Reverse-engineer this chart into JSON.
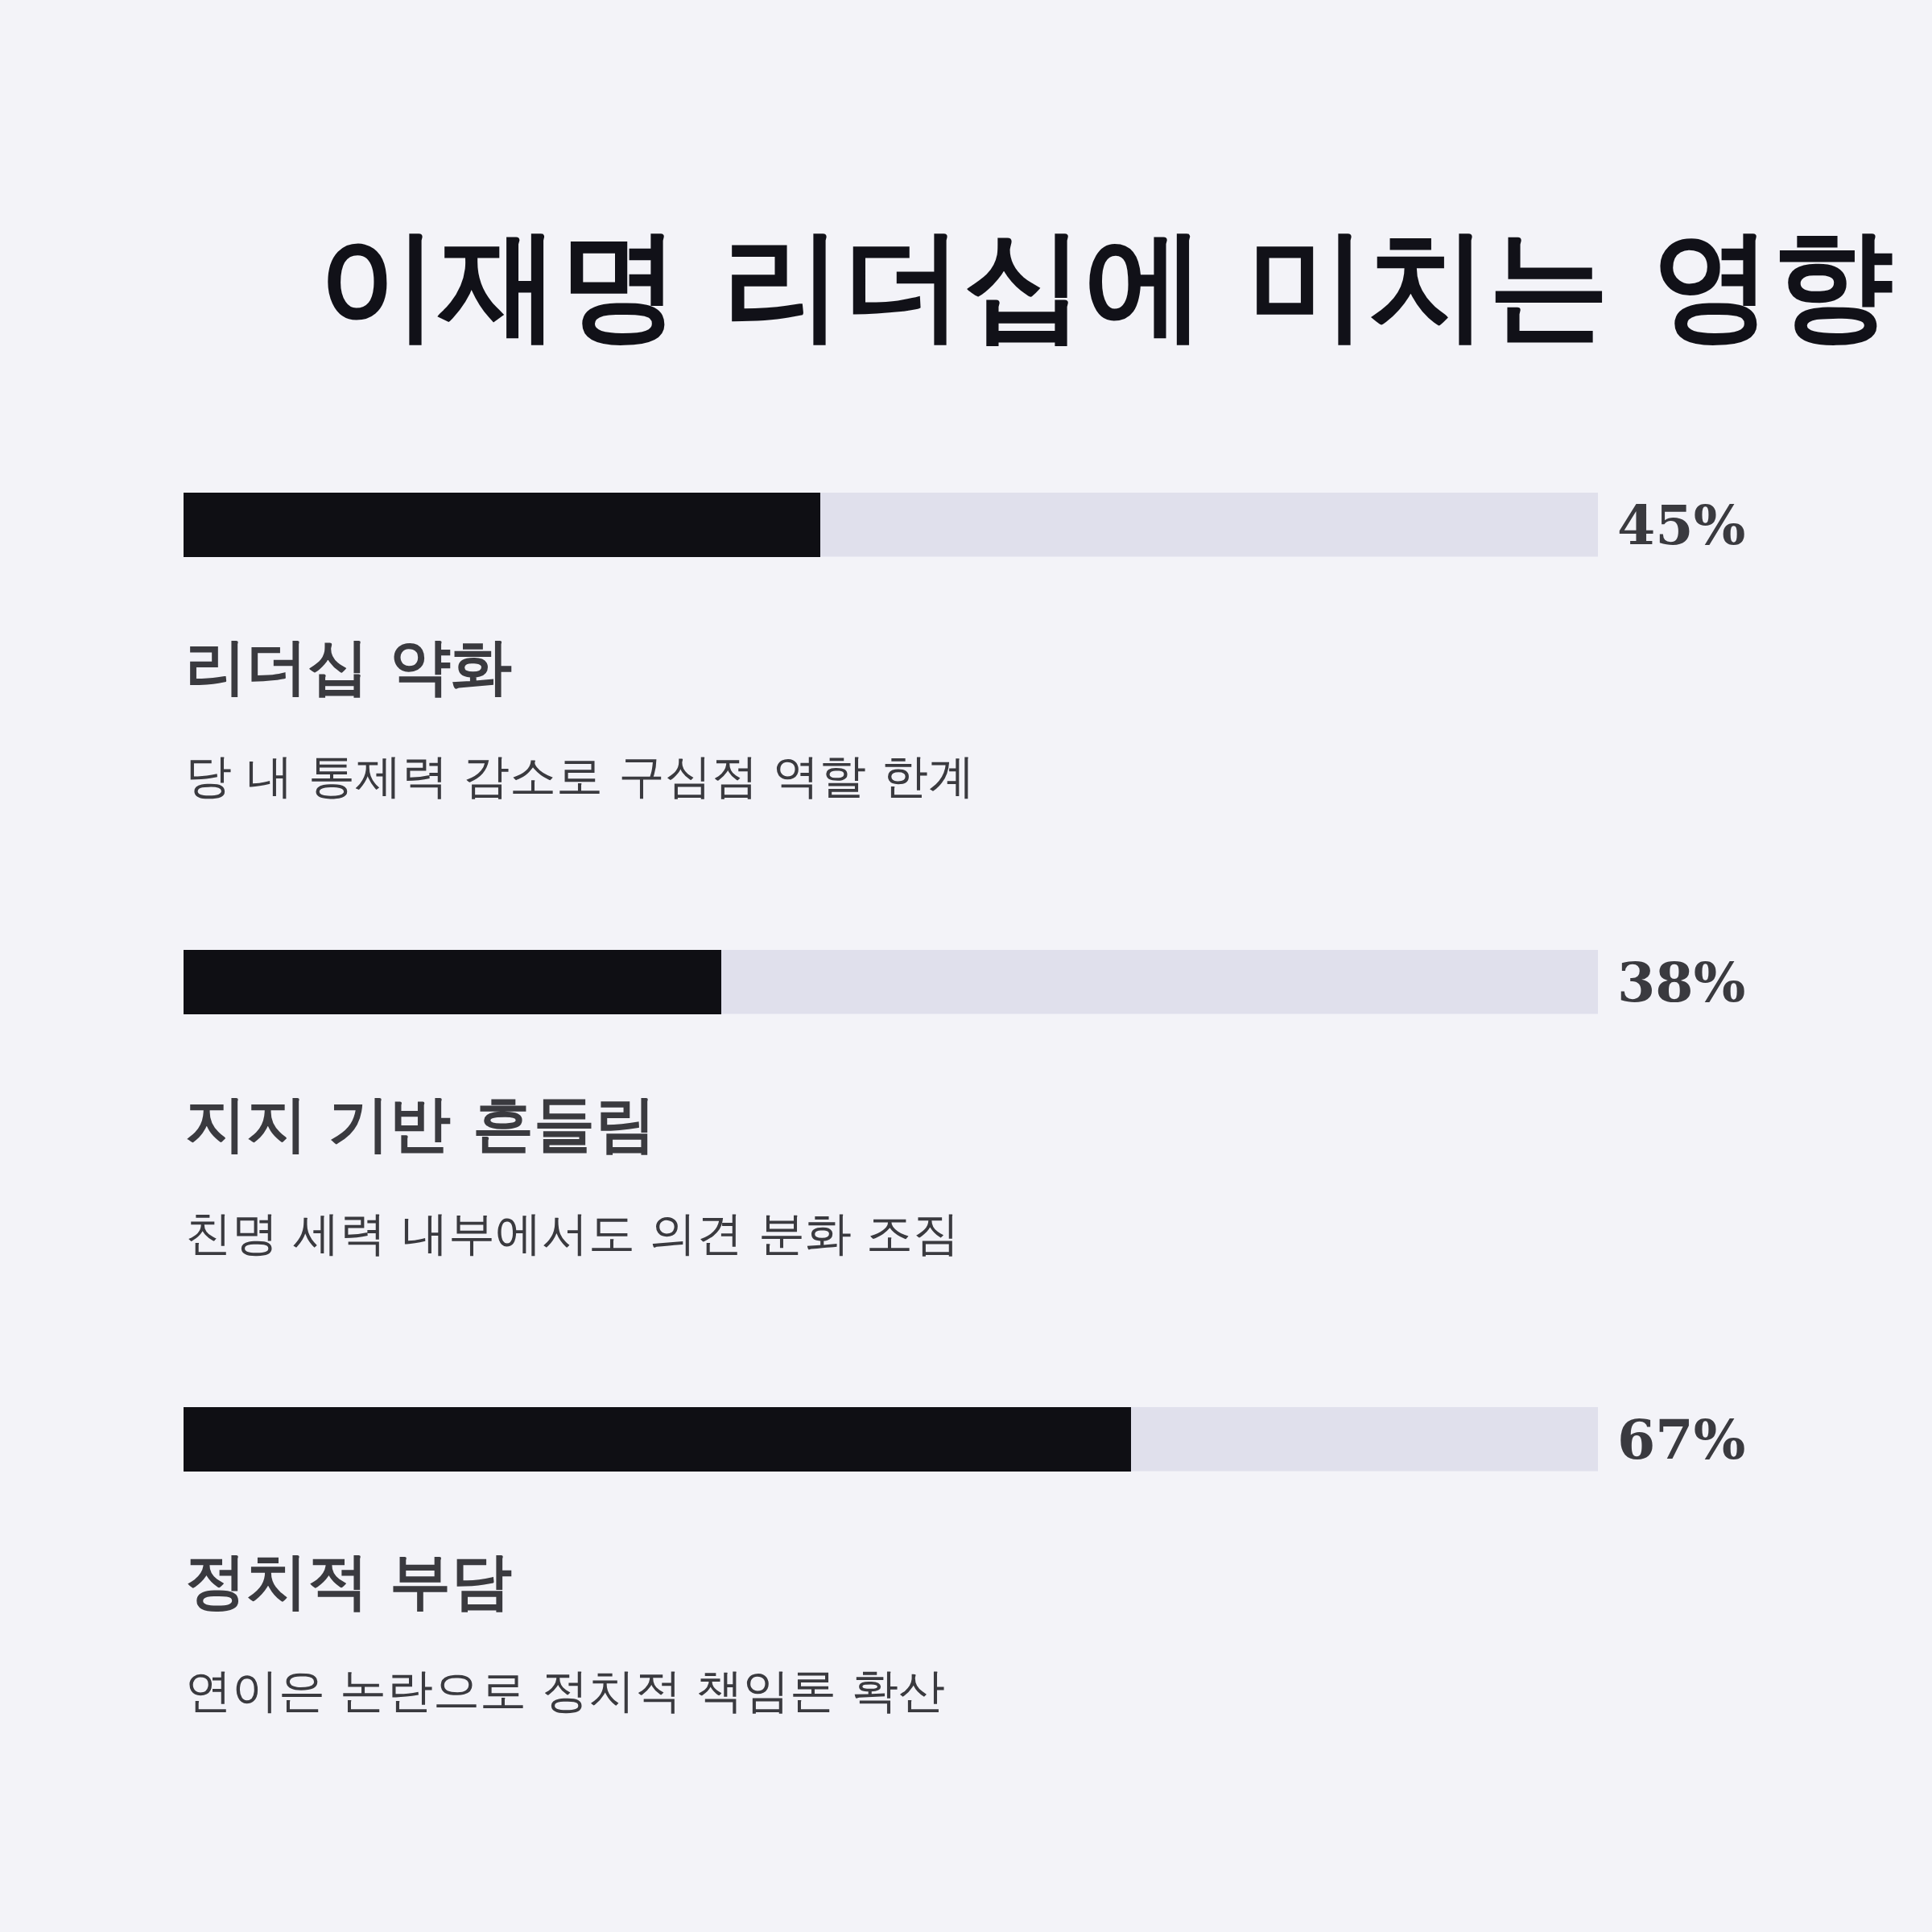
{
  "chart_data": {
    "type": "bar",
    "orientation": "horizontal",
    "title": "이재명 리더십에 미치는 영향",
    "categories": [
      "리더십 약화",
      "지지 기반 흔들림",
      "정치적 부담"
    ],
    "values": [
      45,
      38,
      67
    ],
    "value_labels": [
      "45%",
      "38%",
      "67%"
    ],
    "color": "#0f0f14",
    "xlim": [
      0,
      100
    ],
    "annotations": [
      "당 내 통제력 감소로 구심점 역할 한계",
      "친명 세력 내부에서도 의견 분화 조짐",
      "연이은 논란으로 정치적 책임론 확산"
    ],
    "tick_labels": false,
    "grid": false,
    "legend": false
  }
}
